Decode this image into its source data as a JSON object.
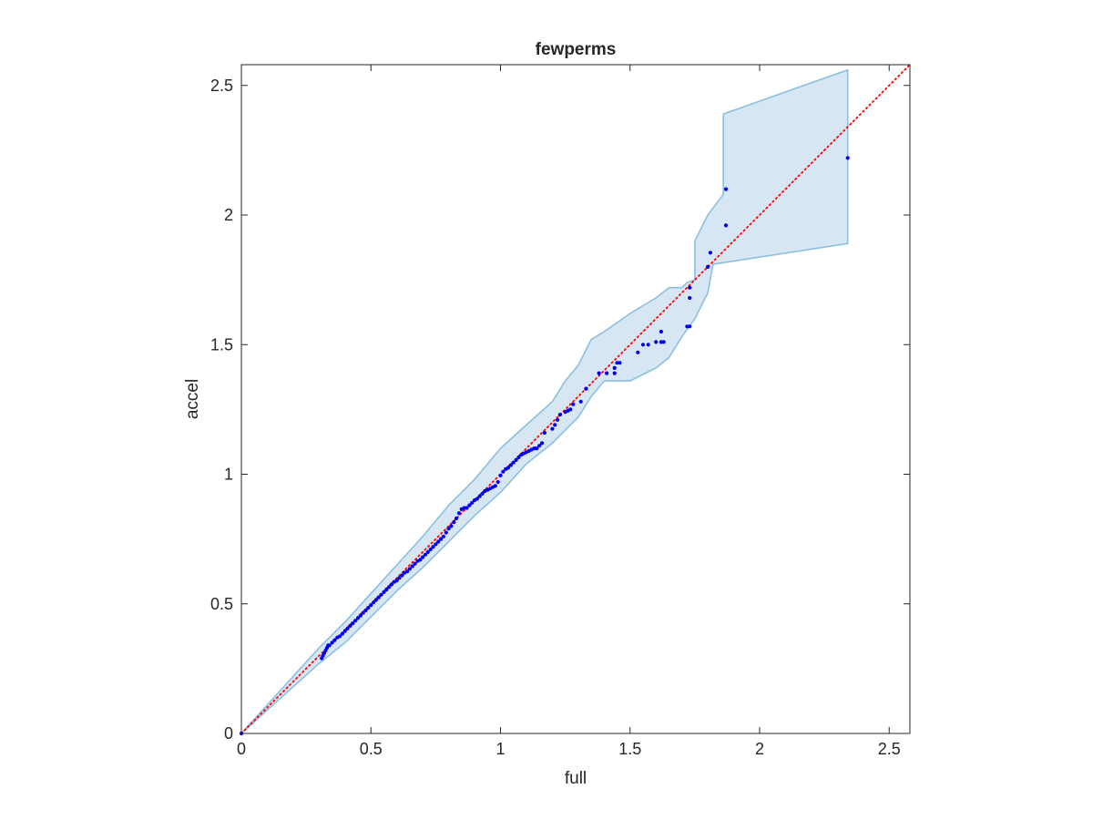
{
  "chart_data": {
    "type": "scatter",
    "title": "fewperms",
    "xlabel": "full",
    "ylabel": "accel",
    "xlim": [
      0,
      2.58
    ],
    "ylim": [
      0,
      2.58
    ],
    "xticks": [
      0,
      0.5,
      1,
      1.5,
      2,
      2.5
    ],
    "yticks": [
      0,
      0.5,
      1,
      1.5,
      2,
      2.5
    ],
    "xtick_labels": [
      "0",
      "0.5",
      "1",
      "1.5",
      "2",
      "2.5"
    ],
    "ytick_labels": [
      "0",
      "0.5",
      "1",
      "1.5",
      "2",
      "2.5"
    ],
    "grid": false,
    "legend": "none",
    "colors": {
      "points": "#0000ee",
      "reference_line": "#ff0000",
      "band_fill": "#d6e7f3",
      "band_edge": "#8cbfe0",
      "axes": "#262626"
    },
    "series": [
      {
        "kind": "points",
        "x": [
          0,
          0.31,
          0.315,
          0.32,
          0.325,
          0.33,
          0.335,
          0.34,
          0.35,
          0.36,
          0.37,
          0.38,
          0.39,
          0.4,
          0.41,
          0.42,
          0.43,
          0.44,
          0.45,
          0.46,
          0.47,
          0.48,
          0.49,
          0.5,
          0.51,
          0.52,
          0.53,
          0.54,
          0.55,
          0.56,
          0.57,
          0.58,
          0.59,
          0.6,
          0.61,
          0.62,
          0.63,
          0.64,
          0.65,
          0.66,
          0.67,
          0.68,
          0.69,
          0.7,
          0.71,
          0.72,
          0.73,
          0.74,
          0.75,
          0.76,
          0.77,
          0.78,
          0.79,
          0.8,
          0.81,
          0.82,
          0.83,
          0.84,
          0.85,
          0.86,
          0.87,
          0.88,
          0.89,
          0.9,
          0.91,
          0.92,
          0.93,
          0.94,
          0.95,
          0.96,
          0.97,
          0.98,
          0.99,
          1.0,
          1.01,
          1.02,
          1.03,
          1.04,
          1.05,
          1.06,
          1.07,
          1.08,
          1.09,
          1.1,
          1.11,
          1.12,
          1.13,
          1.14,
          1.15,
          1.16,
          1.17,
          1.2,
          1.21,
          1.22,
          1.23,
          1.25,
          1.26,
          1.27,
          1.28,
          1.31,
          1.33,
          1.38,
          1.41,
          1.44,
          1.44,
          1.45,
          1.46,
          1.53,
          1.55,
          1.57,
          1.6,
          1.62,
          1.62,
          1.63,
          1.72,
          1.73,
          1.73,
          1.73,
          1.8,
          1.81,
          1.87,
          1.87,
          2.34
        ],
        "y": [
          0,
          0.29,
          0.3,
          0.31,
          0.32,
          0.33,
          0.34,
          0.34,
          0.35,
          0.36,
          0.37,
          0.375,
          0.385,
          0.395,
          0.405,
          0.415,
          0.425,
          0.435,
          0.445,
          0.455,
          0.465,
          0.475,
          0.485,
          0.495,
          0.505,
          0.515,
          0.525,
          0.535,
          0.545,
          0.555,
          0.565,
          0.575,
          0.585,
          0.59,
          0.6,
          0.61,
          0.62,
          0.625,
          0.635,
          0.645,
          0.655,
          0.665,
          0.67,
          0.68,
          0.69,
          0.7,
          0.71,
          0.72,
          0.73,
          0.74,
          0.75,
          0.76,
          0.775,
          0.79,
          0.8,
          0.815,
          0.83,
          0.85,
          0.865,
          0.87,
          0.87,
          0.88,
          0.89,
          0.9,
          0.905,
          0.915,
          0.925,
          0.935,
          0.94,
          0.945,
          0.95,
          0.955,
          0.97,
          0.995,
          1.01,
          1.02,
          1.025,
          1.035,
          1.045,
          1.055,
          1.065,
          1.075,
          1.08,
          1.085,
          1.09,
          1.095,
          1.1,
          1.1,
          1.11,
          1.12,
          1.16,
          1.175,
          1.19,
          1.21,
          1.23,
          1.24,
          1.245,
          1.25,
          1.27,
          1.28,
          1.33,
          1.39,
          1.39,
          1.39,
          1.41,
          1.43,
          1.43,
          1.47,
          1.5,
          1.5,
          1.51,
          1.51,
          1.55,
          1.51,
          1.57,
          1.57,
          1.68,
          1.72,
          1.8,
          1.855,
          1.96,
          2.1,
          2.22
        ]
      },
      {
        "kind": "reference_line",
        "x": [
          0,
          2.58
        ],
        "y": [
          0,
          2.58
        ]
      },
      {
        "kind": "band_upper",
        "x": [
          0,
          0.3,
          0.4,
          0.5,
          0.6,
          0.7,
          0.8,
          0.9,
          1.0,
          1.1,
          1.2,
          1.25,
          1.3,
          1.35,
          1.4,
          1.5,
          1.6,
          1.65,
          1.7,
          1.72,
          1.75,
          1.75,
          1.8,
          1.86,
          1.86,
          2.34
        ],
        "y": [
          0,
          0.33,
          0.43,
          0.54,
          0.65,
          0.76,
          0.88,
          0.98,
          1.1,
          1.19,
          1.28,
          1.36,
          1.42,
          1.52,
          1.55,
          1.62,
          1.68,
          1.72,
          1.72,
          1.74,
          1.75,
          1.9,
          2.0,
          2.08,
          2.39,
          2.56
        ]
      },
      {
        "kind": "band_lower",
        "x": [
          0,
          0.3,
          0.4,
          0.5,
          0.6,
          0.7,
          0.8,
          0.9,
          1.0,
          1.1,
          1.2,
          1.3,
          1.35,
          1.4,
          1.5,
          1.6,
          1.65,
          1.7,
          1.75,
          1.8,
          1.82,
          2.34
        ],
        "y": [
          0,
          0.27,
          0.35,
          0.45,
          0.55,
          0.64,
          0.74,
          0.84,
          0.93,
          1.04,
          1.12,
          1.22,
          1.3,
          1.36,
          1.36,
          1.41,
          1.45,
          1.53,
          1.6,
          1.7,
          1.81,
          1.89
        ]
      }
    ]
  }
}
